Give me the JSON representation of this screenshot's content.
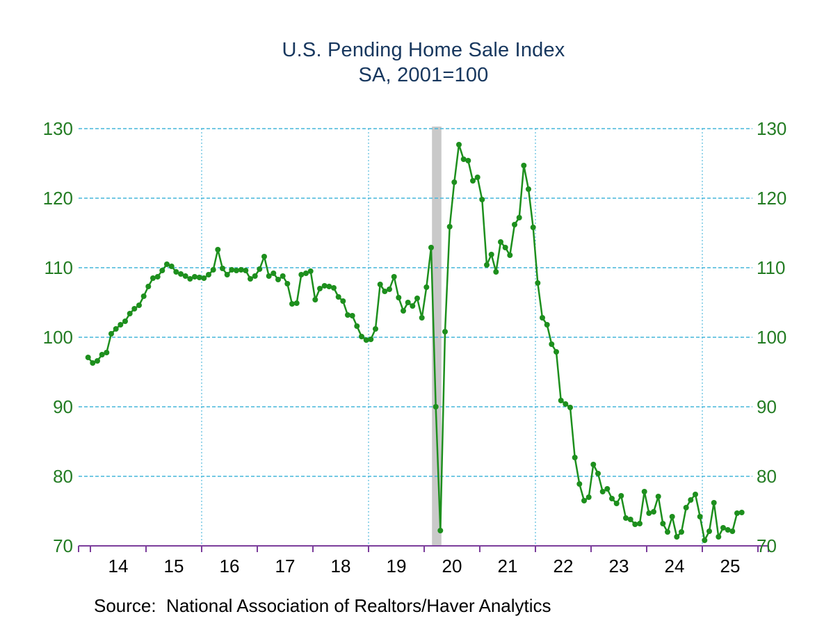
{
  "title": {
    "line1": "U.S. Pending Home Sale Index",
    "line2": "SA, 2001=100"
  },
  "source_note": "Source:  National Association of Realtors/Haver Analytics",
  "colors": {
    "title": "#17375e",
    "series": "#1d8f1d",
    "axis_labels": "#237c23",
    "gridline": "#45b5da",
    "x_axis": "#7b3d9b",
    "x_labels": "#000000",
    "recession_band": "#c9c9c9",
    "background": "#ffffff"
  },
  "chart_data": {
    "type": "line",
    "title": "U.S. Pending Home Sale Index",
    "subtitle": "SA, 2001=100",
    "grid": true,
    "legend_position": "none",
    "ylim": [
      70,
      130
    ],
    "y_ticks": [
      70,
      80,
      90,
      100,
      110,
      120,
      130
    ],
    "y_tick_sides": "both",
    "x_tick_labels": [
      "14",
      "15",
      "16",
      "17",
      "18",
      "19",
      "20",
      "21",
      "22",
      "23",
      "24",
      "25"
    ],
    "x_first_label_year": 2014,
    "vertical_gridline_years": [
      2016,
      2019,
      2022,
      2025
    ],
    "recession_band": {
      "start_year_frac": 2020.14,
      "end_year_frac": 2020.31
    },
    "marker": "circle",
    "series": [
      {
        "name": "U.S. Pending Home Sale Index (SA, 2001=100)",
        "frequency": "monthly",
        "start_year": 2013,
        "start_month": 12,
        "values": [
          97.1,
          96.3,
          96.6,
          97.5,
          97.8,
          100.5,
          101.2,
          101.8,
          102.3,
          103.4,
          104.1,
          104.6,
          105.9,
          107.3,
          108.5,
          108.7,
          109.6,
          110.5,
          110.2,
          109.4,
          109.1,
          108.8,
          108.4,
          108.7,
          108.6,
          108.5,
          109.0,
          109.7,
          112.6,
          109.9,
          109.0,
          109.7,
          109.6,
          109.7,
          109.6,
          108.4,
          108.8,
          109.8,
          111.6,
          108.8,
          109.2,
          108.3,
          108.8,
          107.7,
          104.8,
          104.9,
          109.0,
          109.2,
          109.5,
          105.4,
          107.0,
          107.4,
          107.3,
          107.1,
          105.8,
          105.2,
          103.2,
          103.1,
          101.6,
          100.1,
          99.6,
          99.7,
          101.2,
          107.6,
          106.6,
          106.9,
          108.7,
          105.7,
          103.8,
          105.0,
          104.5,
          105.6,
          102.8,
          107.2,
          112.9,
          90.0,
          72.2,
          100.8,
          115.9,
          122.3,
          127.7,
          125.6,
          125.4,
          122.5,
          123.0,
          119.8,
          110.4,
          111.9,
          109.4,
          113.7,
          112.9,
          111.8,
          116.2,
          117.2,
          124.7,
          121.3,
          115.8,
          107.8,
          102.8,
          101.8,
          99.0,
          97.9,
          90.9,
          90.4,
          89.9,
          82.7,
          78.9,
          76.5,
          77.0,
          81.7,
          80.4,
          77.8,
          78.2,
          76.8,
          76.1,
          77.2,
          74.0,
          73.8,
          73.1,
          73.2,
          77.8,
          74.7,
          74.9,
          77.1,
          73.2,
          72.0,
          74.2,
          71.3,
          72.0,
          75.5,
          76.6,
          77.4,
          74.2,
          70.8,
          72.1,
          76.2,
          71.3,
          72.6,
          72.3,
          72.1,
          74.7,
          74.8
        ]
      }
    ]
  }
}
